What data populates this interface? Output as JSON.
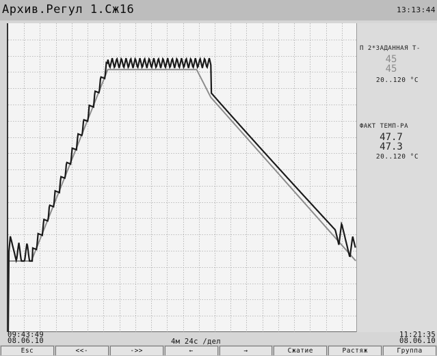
{
  "header": {
    "title": "Архив.Регул 1.Сж16",
    "clock": "13:13:44"
  },
  "time_axis": {
    "start_time": "09:43:49",
    "start_date": "08.06.10",
    "end_time": "11:21:35",
    "end_date": "08.06.10",
    "scale_label": "4м 24с /дел"
  },
  "channels": [
    {
      "name": "П 2*ЗАДАННАЯ Т-",
      "value_1": "45",
      "value_2": "45",
      "range": "20..120 °C",
      "tone": "light"
    },
    {
      "name": "ФАКТ ТЕМП-РА",
      "value_1": "47.7",
      "value_2": "47.3",
      "range": "20..120 °C",
      "tone": "dark"
    }
  ],
  "function_keys": [
    "Esc",
    "<<-",
    "->>",
    "←",
    "→",
    "Сжатие",
    "Растяж",
    "Группа"
  ],
  "colors": {
    "setpoint_line": "#8c8c8c",
    "actual_line": "#1a1a1a",
    "grid": "#a8a8a8"
  },
  "chart_data": {
    "type": "line",
    "title": "",
    "xlabel": "",
    "ylabel": "",
    "grid": true,
    "x_divisions": 22,
    "y_divisions": 19,
    "ylim": [
      20,
      120
    ],
    "x": [
      0,
      6.5,
      28,
      35,
      53,
      57,
      97.8
    ],
    "series": [
      {
        "name": "П 2*ЗАДАННАЯ Т-",
        "values": [
          43,
          43,
          105,
          105,
          105,
          96,
          43
        ]
      },
      {
        "name": "ФАКТ ТЕМП-РА",
        "values": [
          51,
          43,
          105,
          108,
          108,
          98,
          43
        ]
      }
    ]
  }
}
